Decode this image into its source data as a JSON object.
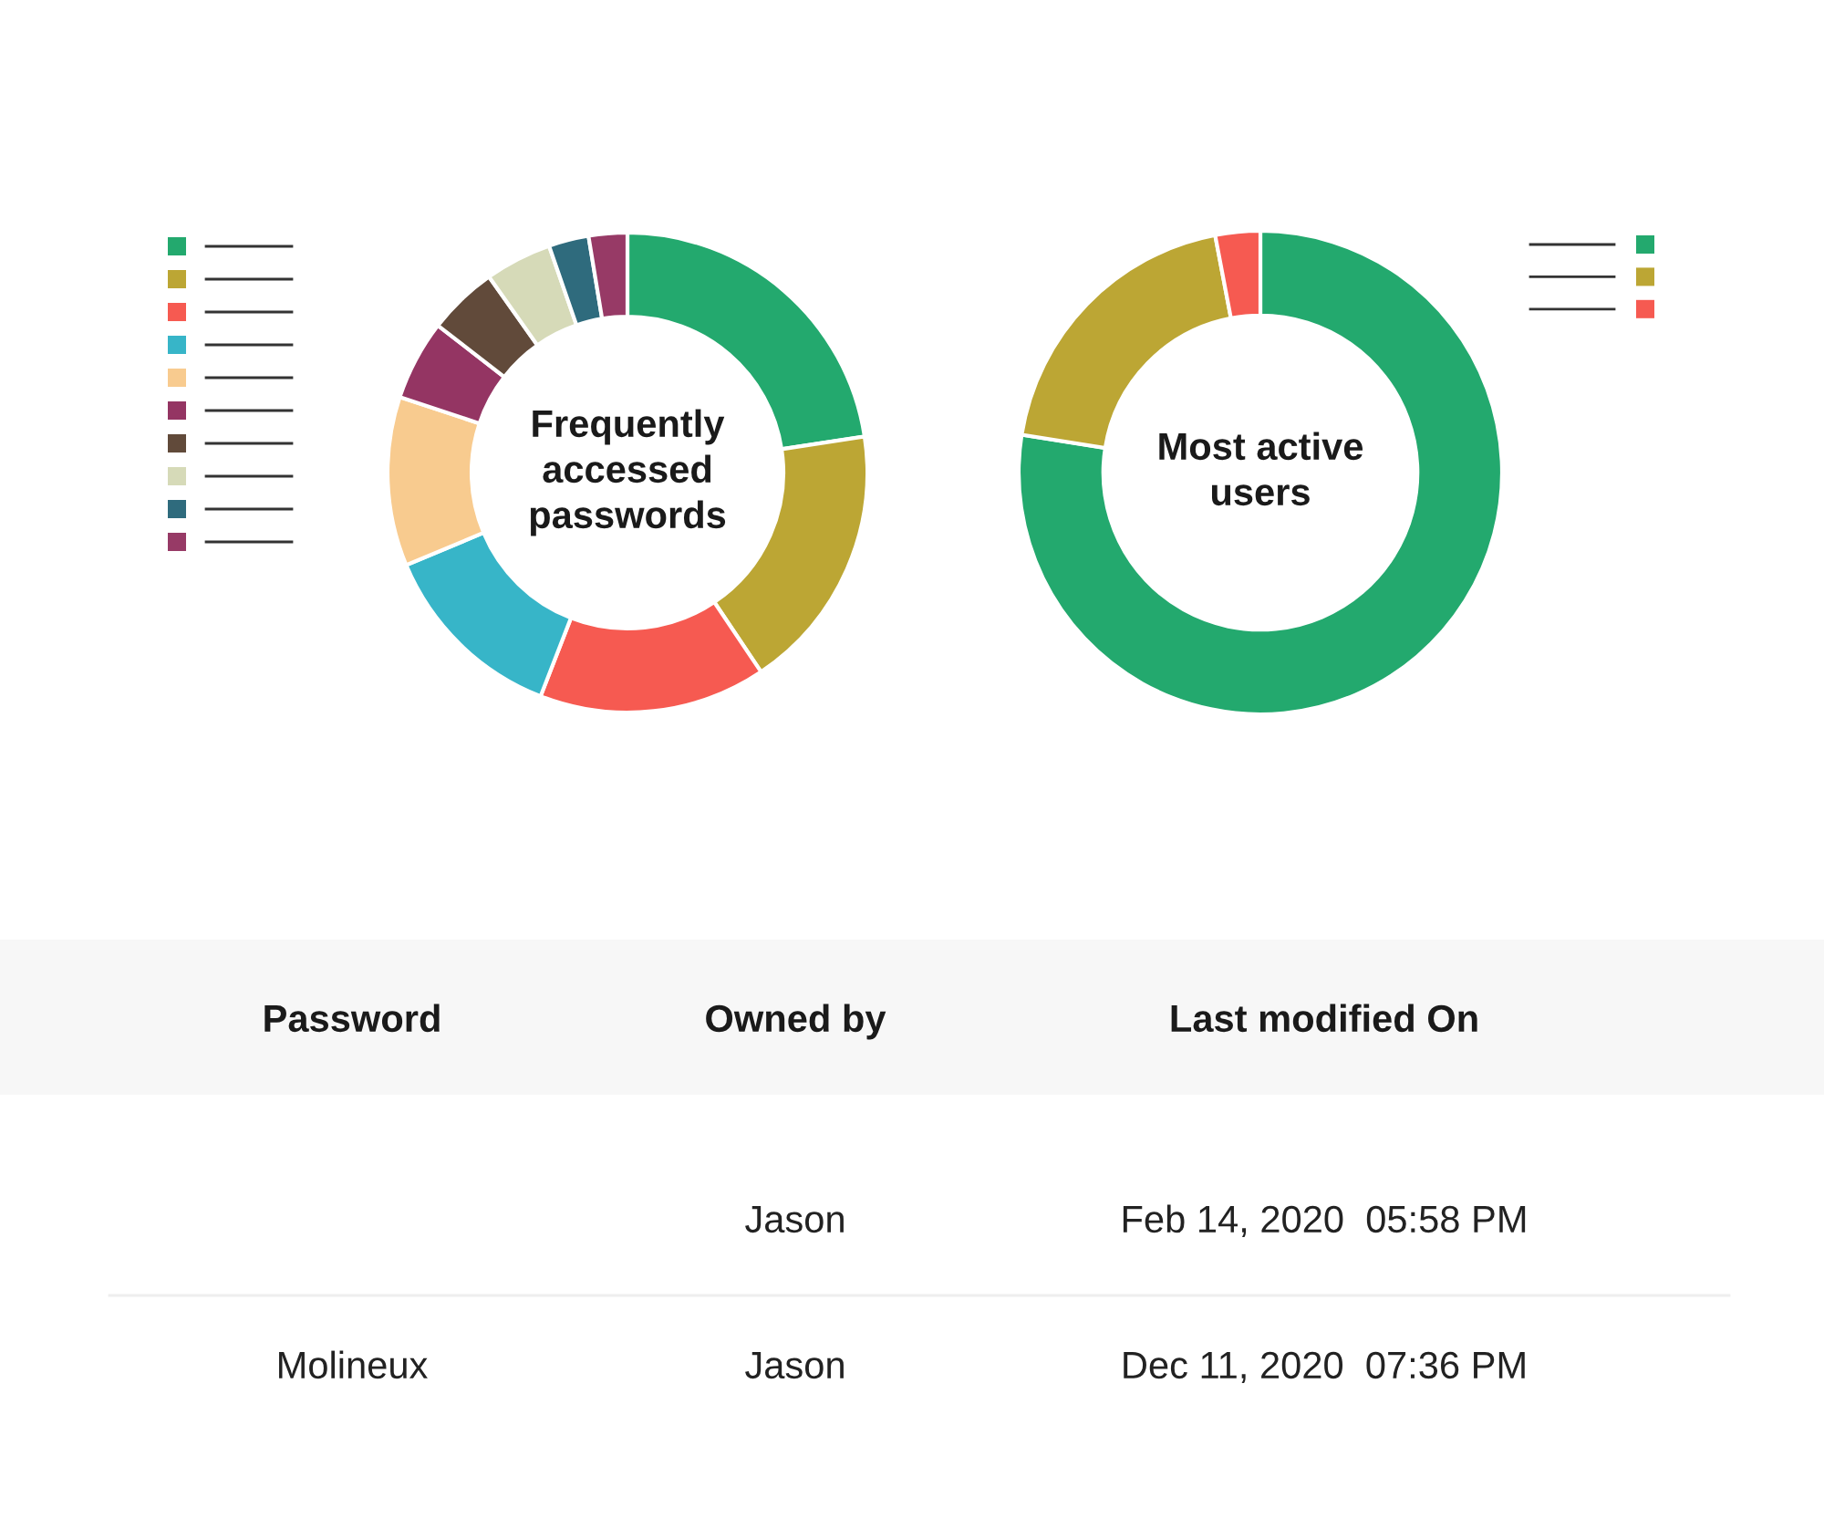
{
  "chart_data": [
    {
      "type": "donut",
      "title": "Frequently accessed passwords",
      "categories": [
        null,
        null,
        null,
        null,
        null,
        null,
        null,
        null,
        null,
        null
      ],
      "values": [
        22.6,
        18.0,
        15.3,
        12.8,
        11.4,
        5.4,
        4.7,
        4.5,
        2.7,
        2.6
      ],
      "colors": [
        "#23a96e",
        "#bca634",
        "#f65a51",
        "#37b5c8",
        "#f8cb8f",
        "#943563",
        "#614a3a",
        "#d6dab8",
        "#2f6b7d",
        "#973a66"
      ]
    },
    {
      "type": "donut",
      "title": "Most active users",
      "categories": [
        null,
        null,
        null
      ],
      "values": [
        77.5,
        19.5,
        3.0
      ],
      "colors": [
        "#23a96e",
        "#bca634",
        "#f65a51"
      ]
    },
    {
      "type": "other",
      "categories": [
        "Password",
        "Owned by",
        "Last modified On"
      ],
      "cell_labels": [
        [
          null,
          "Jason",
          "Feb 14, 2020  05:58 PM"
        ],
        [
          "Molineux",
          "Jason",
          "Dec 11, 2020  07:36 PM"
        ]
      ]
    }
  ]
}
